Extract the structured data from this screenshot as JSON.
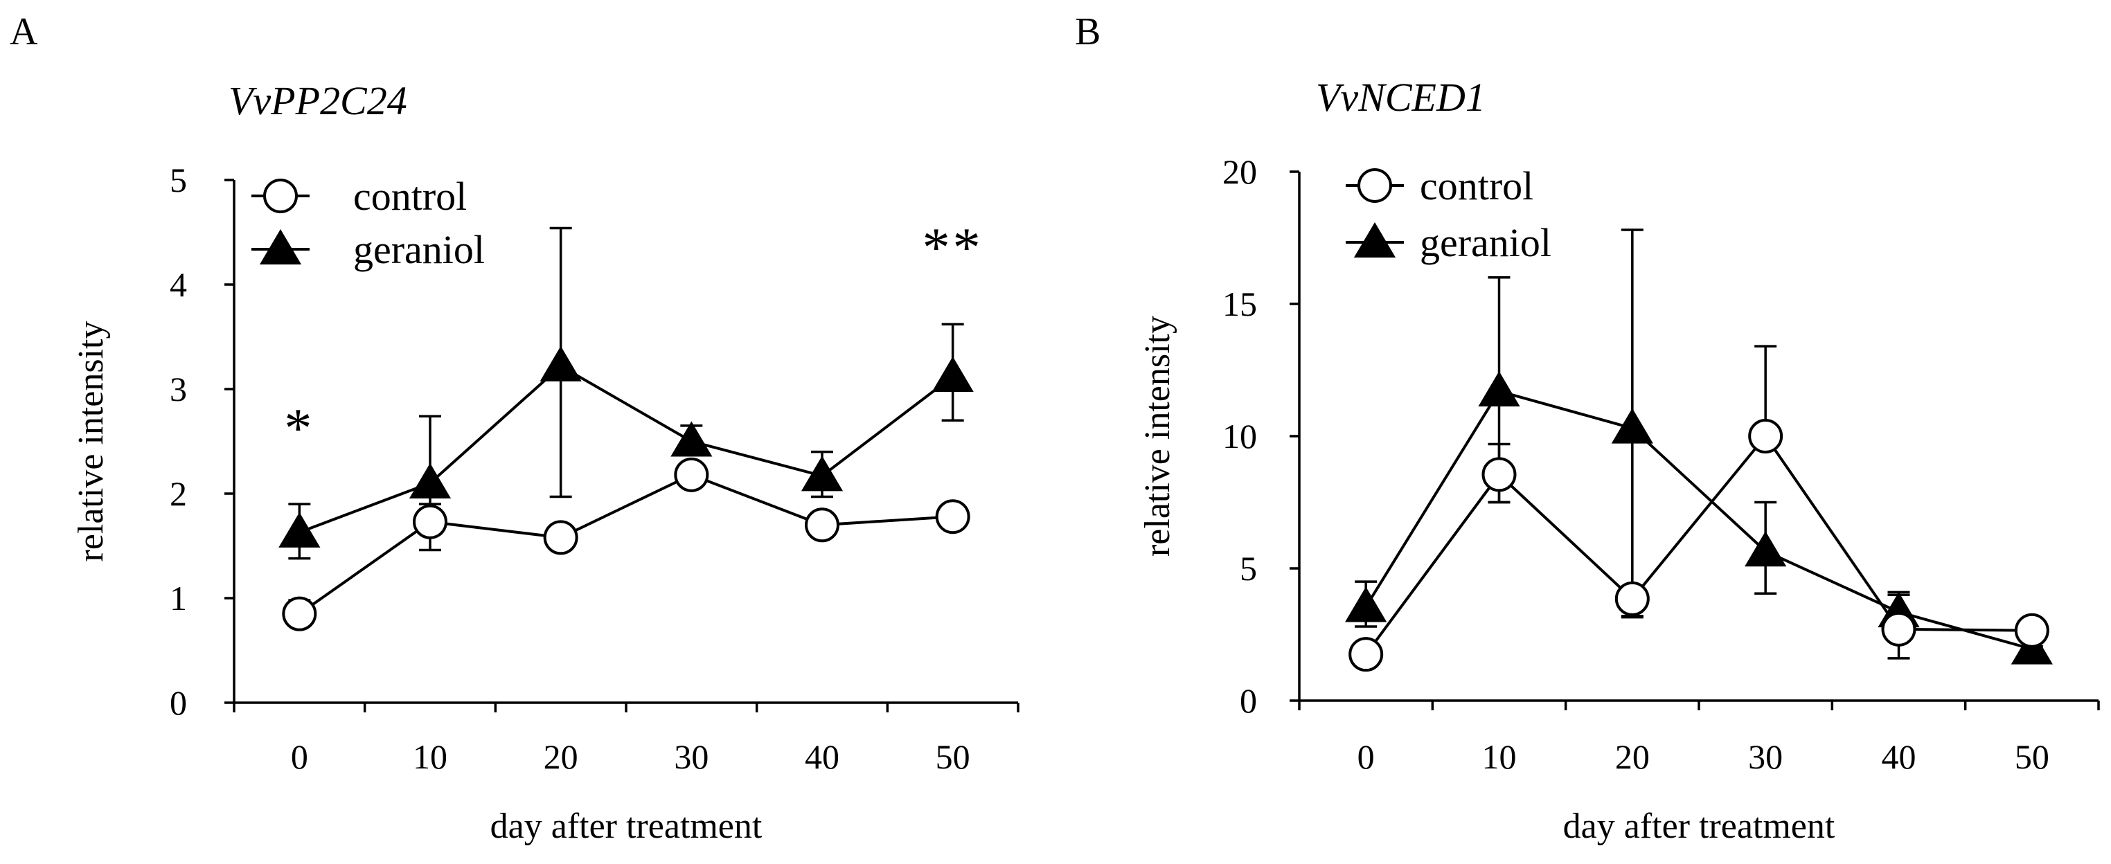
{
  "chart_data": [
    {
      "type": "line",
      "panel": "A",
      "title": "VvPP2C24",
      "xlabel": "day after treatment",
      "ylabel": "relative intensity",
      "x": [
        0,
        10,
        20,
        30,
        40,
        50
      ],
      "x_tick_labels": [
        "0",
        "10",
        "20",
        "30",
        "40",
        "50"
      ],
      "xlim": [
        -5,
        55
      ],
      "ylim": [
        0,
        5
      ],
      "y_ticks": [
        0,
        1,
        2,
        3,
        4,
        5
      ],
      "y_tick_labels": [
        "0",
        "1",
        "2",
        "3",
        "4",
        "5"
      ],
      "grid": false,
      "legend_position": "top-left",
      "series": [
        {
          "name": "control",
          "marker": "open-circle",
          "values": [
            0.85,
            1.73,
            1.58,
            2.18,
            1.7,
            1.78
          ],
          "error_up": [
            0.13,
            0.17,
            0.1,
            0.1,
            0.05,
            0.05
          ],
          "error_down": [
            0.1,
            0.27,
            0.1,
            0.08,
            0.05,
            0.05
          ]
        },
        {
          "name": "geraniol",
          "marker": "filled-triangle",
          "values": [
            1.63,
            2.1,
            3.22,
            2.5,
            2.17,
            3.12
          ],
          "error_up": [
            0.27,
            0.64,
            1.32,
            0.15,
            0.23,
            0.5
          ],
          "error_down": [
            0.25,
            0.25,
            1.25,
            0.1,
            0.2,
            0.42
          ]
        }
      ],
      "annotations": [
        {
          "text": "*",
          "x": 0,
          "y": 2.45
        },
        {
          "text": "**",
          "x": 50,
          "y": 4.18
        }
      ]
    },
    {
      "type": "line",
      "panel": "B",
      "title": "VvNCED1",
      "xlabel": "day after treatment",
      "ylabel": "relative intensity",
      "x": [
        0,
        10,
        20,
        30,
        40,
        50
      ],
      "x_tick_labels": [
        "0",
        "10",
        "20",
        "30",
        "40",
        "50"
      ],
      "xlim": [
        -5,
        55
      ],
      "ylim": [
        0,
        20
      ],
      "y_ticks": [
        0,
        5,
        10,
        15,
        20
      ],
      "y_tick_labels": [
        "0",
        "5",
        "10",
        "15",
        "20"
      ],
      "grid": false,
      "legend_position": "top-left",
      "series": [
        {
          "name": "control",
          "marker": "open-circle",
          "values": [
            1.75,
            8.55,
            3.85,
            10.0,
            2.7,
            2.65
          ],
          "error_up": [
            0.2,
            1.15,
            0.2,
            3.4,
            1.3,
            0.15
          ],
          "error_down": [
            0.2,
            1.05,
            0.7,
            0.4,
            1.1,
            0.15
          ]
        },
        {
          "name": "geraniol",
          "marker": "filled-triangle",
          "values": [
            3.55,
            11.7,
            10.3,
            5.65,
            3.35,
            1.95
          ],
          "error_up": [
            0.95,
            4.3,
            7.5,
            1.85,
            0.75,
            0.1
          ],
          "error_down": [
            0.75,
            4.2,
            7.1,
            1.6,
            0.55,
            0.1
          ]
        }
      ],
      "annotations": []
    }
  ]
}
